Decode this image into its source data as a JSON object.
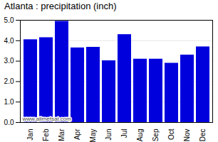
{
  "chart_data": {
    "type": "bar",
    "title": "Atlanta : precipitation (inch)",
    "categories": [
      "Jan",
      "Feb",
      "Mar",
      "Apr",
      "May",
      "Jun",
      "Jul",
      "Aug",
      "Sep",
      "Oct",
      "Nov",
      "Dec"
    ],
    "values": [
      4.05,
      4.15,
      4.95,
      3.65,
      3.68,
      3.02,
      4.3,
      3.1,
      3.1,
      2.9,
      3.3,
      3.7
    ],
    "color": "#0000dd",
    "ylim": [
      0,
      5
    ],
    "yticks": [
      0,
      1,
      2,
      3,
      4,
      5
    ],
    "grid": true,
    "annotation": "www.allmetsat.com"
  }
}
